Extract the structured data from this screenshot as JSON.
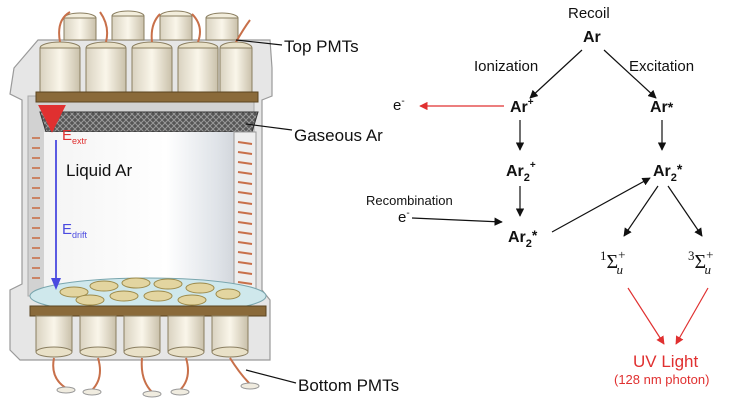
{
  "detector": {
    "top_pmts": "Top PMTs",
    "gaseous_ar": "Gaseous Ar",
    "liquid_ar": "Liquid Ar",
    "bottom_pmts": "Bottom PMTs",
    "e_extr": {
      "main": "E",
      "sub": "extr"
    },
    "e_drift": {
      "main": "E",
      "sub": "drift"
    }
  },
  "scheme": {
    "recoil": "Recoil",
    "ar": "Ar",
    "ionization": "Ionization",
    "excitation": "Excitation",
    "electron": {
      "main": "e",
      "sup": "-"
    },
    "ar_ion": {
      "main": "Ar",
      "sup": "+"
    },
    "ar_excited": {
      "main": "Ar",
      "sup": "*"
    },
    "ar2_ion": {
      "main": "Ar",
      "sub": "2",
      "sup": "+"
    },
    "recombination": "Recombination",
    "recomb_electron": {
      "main": "e",
      "sup": "-"
    },
    "ar2_excited_left": {
      "main": "Ar",
      "sub": "2",
      "sup": "*"
    },
    "ar2_excited_right": {
      "main": "Ar",
      "sub": "2",
      "sup": "*"
    },
    "singlet": {
      "pre": "1",
      "main": "Σ",
      "sub": "u",
      "sup": "+"
    },
    "triplet": {
      "pre": "3",
      "main": "Σ",
      "sub": "u",
      "sup": "+"
    },
    "uv_light": "UV Light",
    "photon": "(128 nm photon)"
  },
  "colors": {
    "red": "#e03030",
    "blue": "#4a4ae0",
    "copper": "#c8704a",
    "frame": "#d8d8d8"
  }
}
